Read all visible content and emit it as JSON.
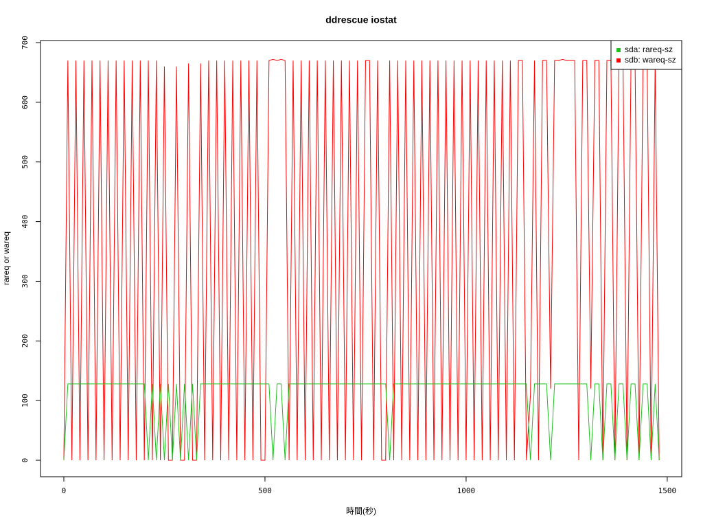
{
  "chart_data": {
    "type": "line",
    "title": "ddrescue iostat",
    "x_label": "時間(秒)",
    "y_label": "rareq or wareq",
    "x": [
      0,
      10,
      20,
      30,
      40,
      50,
      60,
      70,
      80,
      90,
      100,
      110,
      120,
      130,
      140,
      150,
      160,
      170,
      180,
      190,
      200,
      210,
      220,
      230,
      240,
      250,
      260,
      270,
      280,
      290,
      300,
      310,
      320,
      330,
      340,
      350,
      360,
      370,
      380,
      390,
      400,
      410,
      420,
      430,
      440,
      450,
      460,
      470,
      480,
      490,
      500,
      510,
      520,
      530,
      540,
      550,
      560,
      570,
      580,
      590,
      600,
      610,
      620,
      630,
      640,
      650,
      660,
      670,
      680,
      690,
      700,
      710,
      720,
      730,
      740,
      750,
      760,
      770,
      780,
      790,
      800,
      810,
      820,
      830,
      840,
      850,
      860,
      870,
      880,
      890,
      900,
      910,
      920,
      930,
      940,
      950,
      960,
      970,
      980,
      990,
      1000,
      1010,
      1020,
      1030,
      1040,
      1050,
      1060,
      1070,
      1080,
      1090,
      1100,
      1110,
      1120,
      1130,
      1140,
      1150,
      1160,
      1170,
      1180,
      1190,
      1200,
      1210,
      1220,
      1230,
      1240,
      1250,
      1260,
      1270,
      1280,
      1290,
      1300,
      1310,
      1320,
      1330,
      1340,
      1350,
      1360,
      1370,
      1380,
      1390,
      1400,
      1410,
      1420,
      1430,
      1440,
      1450,
      1460,
      1470,
      1480
    ],
    "series": [
      {
        "name": "sda: rareq-sz",
        "color": "#1fc01f",
        "values": [
          0,
          128,
          128,
          128,
          128,
          128,
          128,
          128,
          128,
          128,
          128,
          128,
          128,
          128,
          128,
          128,
          128,
          128,
          128,
          128,
          128,
          0,
          128,
          0,
          128,
          0,
          128,
          0,
          128,
          0,
          128,
          0,
          128,
          0,
          128,
          128,
          128,
          128,
          128,
          128,
          128,
          128,
          128,
          128,
          128,
          128,
          128,
          128,
          128,
          128,
          128,
          128,
          0,
          128,
          128,
          0,
          128,
          128,
          128,
          128,
          128,
          128,
          128,
          128,
          128,
          128,
          128,
          128,
          128,
          128,
          128,
          128,
          128,
          128,
          128,
          128,
          128,
          128,
          128,
          128,
          128,
          0,
          128,
          128,
          128,
          128,
          128,
          128,
          128,
          128,
          128,
          128,
          128,
          128,
          128,
          128,
          128,
          128,
          128,
          128,
          128,
          128,
          128,
          128,
          128,
          128,
          128,
          128,
          128,
          128,
          128,
          128,
          128,
          128,
          128,
          128,
          0,
          128,
          128,
          128,
          128,
          0,
          128,
          128,
          128,
          128,
          128,
          128,
          128,
          128,
          128,
          0,
          128,
          128,
          0,
          128,
          128,
          0,
          128,
          128,
          0,
          128,
          128,
          0,
          128,
          128,
          0,
          128,
          0
        ]
      },
      {
        "name": "sdb: wareq-sz",
        "color": "#ff0000",
        "values": [
          0,
          670,
          0,
          670,
          0,
          670,
          0,
          670,
          0,
          670,
          0,
          670,
          0,
          670,
          0,
          670,
          0,
          670,
          0,
          670,
          0,
          670,
          0,
          670,
          0,
          660,
          0,
          0,
          660,
          0,
          0,
          665,
          0,
          0,
          665,
          0,
          670,
          0,
          670,
          0,
          670,
          0,
          670,
          0,
          670,
          0,
          670,
          0,
          670,
          0,
          0,
          670,
          672,
          670,
          672,
          670,
          0,
          670,
          0,
          670,
          0,
          670,
          0,
          670,
          0,
          670,
          0,
          670,
          0,
          670,
          0,
          670,
          0,
          670,
          0,
          670,
          670,
          0,
          670,
          0,
          0,
          670,
          0,
          670,
          0,
          670,
          0,
          670,
          0,
          670,
          0,
          670,
          0,
          670,
          0,
          670,
          0,
          670,
          0,
          670,
          0,
          670,
          0,
          670,
          0,
          670,
          0,
          670,
          0,
          670,
          0,
          670,
          0,
          670,
          670,
          0,
          110,
          670,
          0,
          670,
          670,
          120,
          670,
          670,
          672,
          670,
          670,
          670,
          0,
          670,
          670,
          120,
          670,
          670,
          0,
          670,
          670,
          0,
          670,
          670,
          0,
          670,
          670,
          0,
          670,
          670,
          0,
          670,
          0
        ]
      }
    ],
    "xlim": [
      -58,
      1536
    ],
    "ylim": [
      -27.6,
      703.5
    ],
    "xticks": [
      0,
      500,
      1000,
      1500
    ],
    "yticks": [
      0,
      100,
      200,
      300,
      400,
      500,
      600,
      700
    ],
    "grid": false,
    "legend_position": "top-right"
  }
}
